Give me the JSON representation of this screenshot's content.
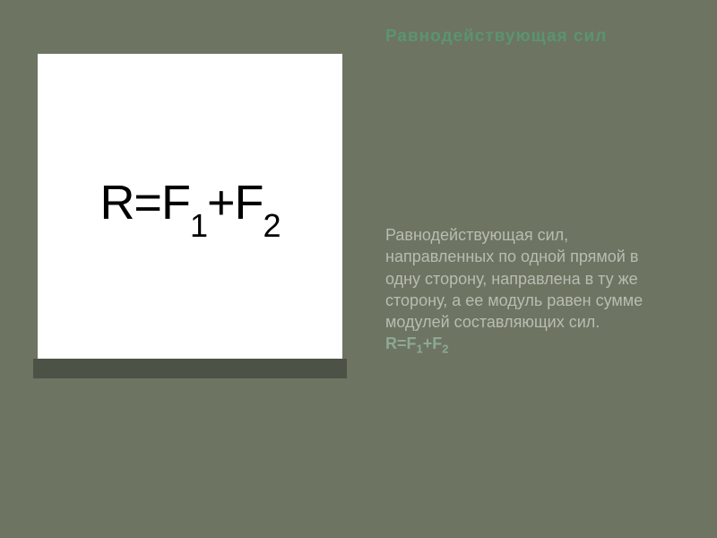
{
  "slide": {
    "title": "Равнодействующая сил",
    "formula": {
      "text_parts": [
        "R=F",
        "1",
        "+F",
        "2"
      ],
      "background_color": "#ffffff",
      "text_color": "#000000",
      "fontsize": 54,
      "sub_fontsize": 36
    },
    "shadow_color": "#4d5246",
    "description": {
      "text": "Равнодействующая сил, направленных по одной прямой в одну сторону, направлена в ту же сторону, а ее модуль равен сумме модулей составляющих сил.",
      "formula_text_parts": [
        "R=F",
        "1",
        "+F",
        "2"
      ],
      "text_color": "#b8bdb0",
      "formula_color": "#8da894",
      "fontsize": 18
    },
    "background_color": "#6d7462",
    "title_color": "#5a9471",
    "title_fontsize": 19
  }
}
